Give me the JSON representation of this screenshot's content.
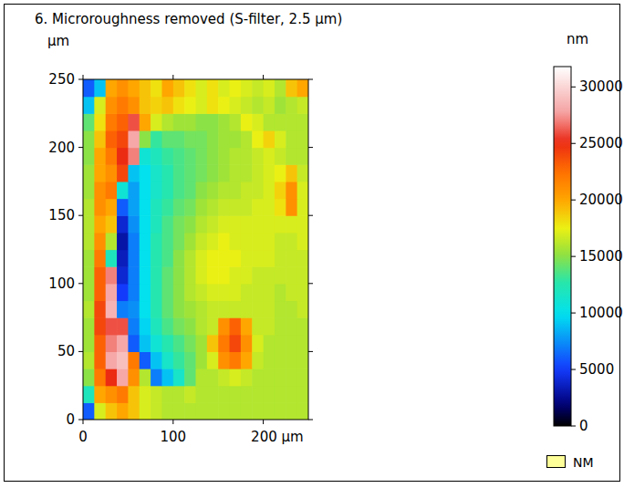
{
  "chart_data": {
    "type": "heatmap",
    "title": "6. Microroughness removed (S-filter, 2.5 µm)",
    "ylabel": "µm",
    "colorbar_label": "nm",
    "xlim": [
      0,
      250
    ],
    "ylim": [
      0,
      250
    ],
    "xticks": [
      0,
      100,
      {
        "value": 200,
        "label": "200 µm"
      }
    ],
    "yticks": [
      0,
      50,
      100,
      150,
      200,
      250
    ],
    "colorbar_lim": [
      0,
      31800
    ],
    "colorbar_ticks": [
      0,
      5000,
      10000,
      15000,
      20000,
      25000,
      30000
    ],
    "legend": "right",
    "legend_items": [
      {
        "name": "NM",
        "color": "#ffff99"
      }
    ],
    "z": [
      [
        6000,
        17000,
        19000,
        20000,
        19000,
        17000,
        16500,
        16000,
        16000,
        16000,
        16000,
        16000,
        16000,
        16000,
        16000,
        16000,
        16000,
        16000,
        16000,
        16000
      ],
      [
        12000,
        20000,
        21000,
        22000,
        19000,
        17000,
        16500,
        16000,
        16000,
        16500,
        16000,
        16000,
        16000,
        16000,
        16000,
        16000,
        16000,
        16000,
        16000,
        16000
      ],
      [
        15000,
        22000,
        25000,
        28000,
        21000,
        16000,
        7000,
        9000,
        11500,
        14000,
        16000,
        16000,
        16500,
        17000,
        16500,
        16000,
        16000,
        16000,
        16000,
        16000
      ],
      [
        16000,
        23000,
        28000,
        29000,
        22000,
        6000,
        9000,
        11500,
        13000,
        14000,
        15500,
        17000,
        21000,
        22000,
        20000,
        16500,
        16000,
        16000,
        16000,
        16000
      ],
      [
        15500,
        23000,
        27000,
        28000,
        6000,
        9000,
        11000,
        12500,
        13500,
        14500,
        15500,
        19000,
        22000,
        24000,
        21000,
        17000,
        16000,
        16000,
        16000,
        16000
      ],
      [
        15500,
        24000,
        26000,
        26000,
        7000,
        9500,
        12000,
        13500,
        14500,
        15000,
        16000,
        16500,
        21000,
        23000,
        20000,
        16500,
        16500,
        16000,
        16000,
        16000
      ],
      [
        16000,
        24000,
        28500,
        7000,
        7500,
        10000,
        12500,
        14000,
        15000,
        15500,
        16000,
        16500,
        16500,
        16500,
        16500,
        16500,
        16500,
        16000,
        16000,
        16500
      ],
      [
        15500,
        23000,
        28000,
        5000,
        7000,
        10000,
        12500,
        14000,
        15000,
        16000,
        16500,
        17000,
        17000,
        17000,
        16500,
        16500,
        16500,
        16000,
        16500,
        16500
      ],
      [
        15500,
        23000,
        27000,
        4000,
        7000,
        10000,
        12500,
        14000,
        15000,
        16000,
        17000,
        17500,
        17500,
        17000,
        17000,
        16500,
        16500,
        16500,
        16500,
        16500
      ],
      [
        15500,
        22000,
        12000,
        3500,
        7000,
        10000,
        12500,
        13500,
        15000,
        16000,
        17000,
        17500,
        17500,
        17500,
        17000,
        17000,
        17000,
        16500,
        16500,
        16500
      ],
      [
        16000,
        21000,
        16000,
        3000,
        7000,
        10000,
        12500,
        13500,
        14500,
        15500,
        16500,
        17000,
        17500,
        17000,
        17000,
        17000,
        17000,
        16500,
        16500,
        17000
      ],
      [
        16000,
        20000,
        19000,
        4000,
        7500,
        10000,
        12000,
        13500,
        14500,
        15000,
        16000,
        16500,
        17000,
        17000,
        17000,
        17000,
        17000,
        17000,
        17000,
        17000
      ],
      [
        16000,
        21000,
        20000,
        6000,
        8000,
        10000,
        12000,
        13000,
        14000,
        14500,
        15500,
        16000,
        16500,
        16500,
        16500,
        17000,
        17000,
        18000,
        21000,
        17000
      ],
      [
        15500,
        21000,
        22000,
        11000,
        8000,
        10000,
        11500,
        12500,
        13500,
        14000,
        15000,
        15500,
        16000,
        16000,
        16500,
        16500,
        17000,
        18500,
        21000,
        17000
      ],
      [
        15500,
        20000,
        21000,
        24000,
        9000,
        10000,
        11500,
        12500,
        13500,
        14000,
        14500,
        15000,
        15500,
        16000,
        16000,
        16500,
        17000,
        17500,
        19000,
        16500
      ],
      [
        15000,
        20000,
        22000,
        25000,
        27000,
        11000,
        12000,
        13000,
        13500,
        14000,
        14500,
        15000,
        15500,
        16000,
        16000,
        16500,
        17000,
        16500,
        16000,
        16000
      ],
      [
        15000,
        19000,
        23000,
        24000,
        28000,
        15000,
        13000,
        14000,
        14000,
        14500,
        14500,
        15000,
        15500,
        15500,
        16000,
        17500,
        18500,
        17000,
        16000,
        16000
      ],
      [
        14000,
        18000,
        22000,
        23000,
        26000,
        20000,
        17000,
        16000,
        15500,
        15500,
        15000,
        15000,
        15500,
        16000,
        17500,
        17000,
        16000,
        16000,
        16000,
        16000
      ],
      [
        9000,
        17000,
        21000,
        22000,
        21000,
        19000,
        18500,
        19000,
        18000,
        17500,
        17000,
        18000,
        17500,
        17000,
        16500,
        16000,
        16500,
        15500,
        16000,
        16500
      ],
      [
        6000,
        9000,
        20000,
        21000,
        20000,
        19000,
        18000,
        20000,
        19000,
        18000,
        17000,
        18000,
        17000,
        17500,
        17000,
        16500,
        17000,
        16000,
        19000,
        20000
      ]
    ]
  }
}
